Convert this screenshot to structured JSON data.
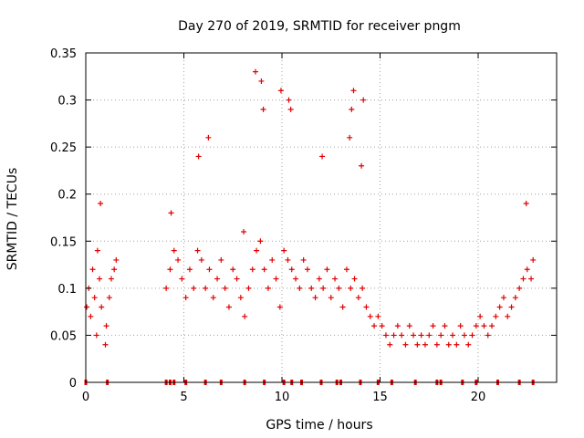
{
  "chart_data": {
    "type": "scatter",
    "title": "Day 270 of 2019, SRMTID for receiver pngm",
    "xlabel": "GPS time / hours",
    "ylabel": "SRMTID / TECUs",
    "xlim": [
      0,
      24
    ],
    "ylim": [
      0,
      0.35
    ],
    "xticks": [
      0,
      5,
      10,
      15,
      20
    ],
    "xtick_labels": [
      "0",
      "5",
      "10",
      "15",
      "20"
    ],
    "yticks": [
      0,
      0.05,
      0.1,
      0.15,
      0.2,
      0.25,
      0.3,
      0.35
    ],
    "ytick_labels": [
      "0",
      "0.05",
      "0.1",
      "0.15",
      "0.2",
      "0.25",
      "0.3",
      "0.35"
    ],
    "grid": true,
    "marker": "+",
    "series": [
      {
        "name": "SRMTID",
        "color": "#e00000",
        "x": [
          0.05,
          0.15,
          0.25,
          0.35,
          0.45,
          0.6,
          0.7,
          0.8,
          1.05,
          1.2,
          1.3,
          1.45,
          1.55,
          4.1,
          4.3,
          4.5,
          4.7,
          4.9,
          5.1,
          5.3,
          5.5,
          5.7,
          5.9,
          6.1,
          6.3,
          6.5,
          6.7,
          6.9,
          7.1,
          7.3,
          7.5,
          7.7,
          7.9,
          8.1,
          8.3,
          8.5,
          8.7,
          8.9,
          9.1,
          9.3,
          9.5,
          9.7,
          9.9,
          10.1,
          10.3,
          10.5,
          10.7,
          10.9,
          11.1,
          11.3,
          11.5,
          11.7,
          11.9,
          12.1,
          12.3,
          12.5,
          12.7,
          12.9,
          13.1,
          13.3,
          13.5,
          13.7,
          13.9,
          14.1,
          14.3,
          14.5,
          14.7,
          14.9,
          15.1,
          15.3,
          15.5,
          15.7,
          15.9,
          16.1,
          16.3,
          16.5,
          16.7,
          16.9,
          17.1,
          17.3,
          17.5,
          17.7,
          17.9,
          18.1,
          18.3,
          18.5,
          18.7,
          18.9,
          19.1,
          19.3,
          19.5,
          19.7,
          19.9,
          20.1,
          20.3,
          20.5,
          20.7,
          20.9,
          21.1,
          21.3,
          21.5,
          21.7,
          21.9,
          22.1,
          22.3,
          22.5,
          22.7,
          22.8,
          0.55,
          0.75,
          1.0,
          4.35,
          5.75,
          6.25,
          8.05,
          8.65,
          8.95,
          9.05,
          9.95,
          10.35,
          10.45,
          12.05,
          13.45,
          13.55,
          13.65,
          14.05,
          14.15,
          22.45
        ],
        "y": [
          0.08,
          0.1,
          0.07,
          0.12,
          0.09,
          0.14,
          0.11,
          0.08,
          0.06,
          0.09,
          0.11,
          0.12,
          0.13,
          0.1,
          0.12,
          0.14,
          0.13,
          0.11,
          0.09,
          0.12,
          0.1,
          0.14,
          0.13,
          0.1,
          0.12,
          0.09,
          0.11,
          0.13,
          0.1,
          0.08,
          0.12,
          0.11,
          0.09,
          0.07,
          0.1,
          0.12,
          0.14,
          0.15,
          0.12,
          0.1,
          0.13,
          0.11,
          0.08,
          0.14,
          0.13,
          0.12,
          0.11,
          0.1,
          0.13,
          0.12,
          0.1,
          0.09,
          0.11,
          0.1,
          0.12,
          0.09,
          0.11,
          0.1,
          0.08,
          0.12,
          0.1,
          0.11,
          0.09,
          0.1,
          0.08,
          0.07,
          0.06,
          0.07,
          0.06,
          0.05,
          0.04,
          0.05,
          0.06,
          0.05,
          0.04,
          0.06,
          0.05,
          0.04,
          0.05,
          0.04,
          0.05,
          0.06,
          0.04,
          0.05,
          0.06,
          0.04,
          0.05,
          0.04,
          0.06,
          0.05,
          0.04,
          0.05,
          0.06,
          0.07,
          0.06,
          0.05,
          0.06,
          0.07,
          0.08,
          0.09,
          0.07,
          0.08,
          0.09,
          0.1,
          0.11,
          0.12,
          0.11,
          0.13,
          0.05,
          0.19,
          0.04,
          0.18,
          0.24,
          0.26,
          0.16,
          0.33,
          0.32,
          0.29,
          0.31,
          0.3,
          0.29,
          0.24,
          0.26,
          0.29,
          0.31,
          0.23,
          0.3,
          0.19
        ]
      }
    ],
    "baseline_markers_x": [
      0.0,
      1.1,
      4.1,
      4.3,
      4.5,
      5.1,
      6.1,
      6.9,
      8.1,
      9.1,
      10.1,
      10.5,
      11.0,
      12.0,
      12.8,
      13.0,
      14.0,
      14.9,
      15.6,
      16.8,
      17.9,
      18.1,
      19.2,
      19.9,
      21.0,
      22.1,
      22.8
    ]
  }
}
